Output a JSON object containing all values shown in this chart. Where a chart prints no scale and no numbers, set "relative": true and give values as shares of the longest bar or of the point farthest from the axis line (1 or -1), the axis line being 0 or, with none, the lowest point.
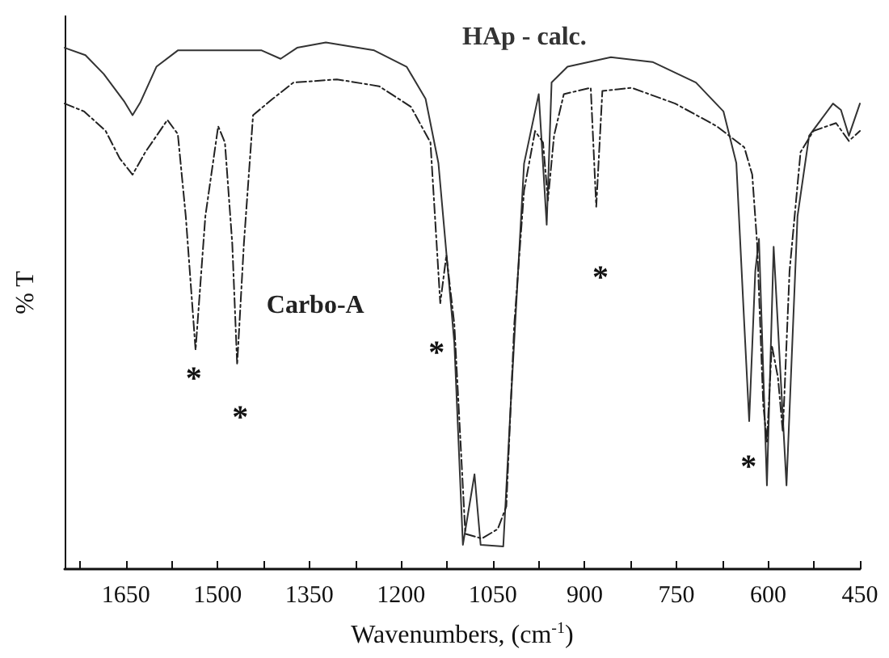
{
  "chart_data": {
    "type": "line",
    "relative": true,
    "xlabel": "Wavenumbers, (cm$^{-1}$)",
    "ylabel": "% T",
    "xlim": [
      1750,
      450
    ],
    "xticks": [
      {
        "value": 1725,
        "label": null
      },
      1650,
      {
        "value": 1575,
        "label": null
      },
      1500,
      {
        "value": 1425,
        "label": null
      },
      1350,
      {
        "value": 1275,
        "label": null
      },
      1200,
      {
        "value": 1125,
        "label": null
      },
      1050,
      {
        "value": 975,
        "label": null
      },
      900,
      {
        "value": 825,
        "label": null
      },
      750,
      {
        "value": 675,
        "label": null
      },
      600,
      {
        "value": 525,
        "label": null
      },
      450
    ],
    "grid": false,
    "legend": false,
    "marker": "none",
    "series": [
      {
        "name": "HAp - calc.",
        "color": "#333333",
        "line_style": "solid",
        "x": [
          1750,
          1716,
          1686,
          1652,
          1639,
          1626,
          1600,
          1565,
          1507,
          1428,
          1397,
          1370,
          1323,
          1244,
          1191,
          1160,
          1139,
          1113,
          1099,
          1080,
          1070,
          1033,
          1020,
          999,
          975,
          962,
          954,
          928,
          857,
          789,
          718,
          673,
          652,
          639,
          631,
          621,
          615,
          602,
          591,
          570,
          552,
          533,
          494,
          481,
          468,
          450
        ],
        "values": [
          0.99,
          0.976,
          0.94,
          0.887,
          0.862,
          0.887,
          0.954,
          0.985,
          0.985,
          0.985,
          0.969,
          0.99,
          1,
          0.985,
          0.954,
          0.893,
          0.771,
          0.43,
          0.046,
          0.18,
          0.046,
          0.043,
          0.33,
          0.77,
          0.902,
          0.654,
          0.924,
          0.954,
          0.972,
          0.963,
          0.924,
          0.869,
          0.771,
          0.465,
          0.281,
          0.566,
          0.627,
          0.159,
          0.612,
          0.159,
          0.67,
          0.823,
          0.884,
          0.872,
          0.823,
          0.884
        ]
      },
      {
        "name": "Carbo-A",
        "color": "#222222",
        "line_style": "dashed",
        "x": [
          1750,
          1718,
          1683,
          1660,
          1639,
          1618,
          1582,
          1565,
          1552,
          1536,
          1520,
          1499,
          1488,
          1476,
          1468,
          1457,
          1442,
          1410,
          1376,
          1305,
          1236,
          1184,
          1152,
          1136,
          1126,
          1113,
          1095,
          1068,
          1042,
          1028,
          1015,
          999,
          981,
          968,
          960,
          950,
          934,
          890,
          881,
          871,
          823,
          752,
          684,
          639,
          626,
          618,
          608,
          602,
          594,
          584,
          576,
          565,
          547,
          526,
          489,
          468,
          450
        ],
        "values": [
          0.884,
          0.869,
          0.832,
          0.78,
          0.749,
          0.792,
          0.853,
          0.826,
          0.67,
          0.416,
          0.67,
          0.841,
          0.81,
          0.618,
          0.388,
          0.618,
          0.862,
          0.893,
          0.924,
          0.93,
          0.917,
          0.878,
          0.81,
          0.505,
          0.596,
          0.465,
          0.067,
          0.058,
          0.076,
          0.119,
          0.465,
          0.719,
          0.832,
          0.81,
          0.7,
          0.823,
          0.902,
          0.914,
          0.688,
          0.908,
          0.914,
          0.884,
          0.841,
          0.801,
          0.749,
          0.618,
          0.312,
          0.242,
          0.425,
          0.364,
          0.26,
          0.566,
          0.792,
          0.832,
          0.847,
          0.813,
          0.832
        ]
      }
    ],
    "annotations": [
      "*",
      "*",
      "*",
      "*",
      "*"
    ]
  }
}
